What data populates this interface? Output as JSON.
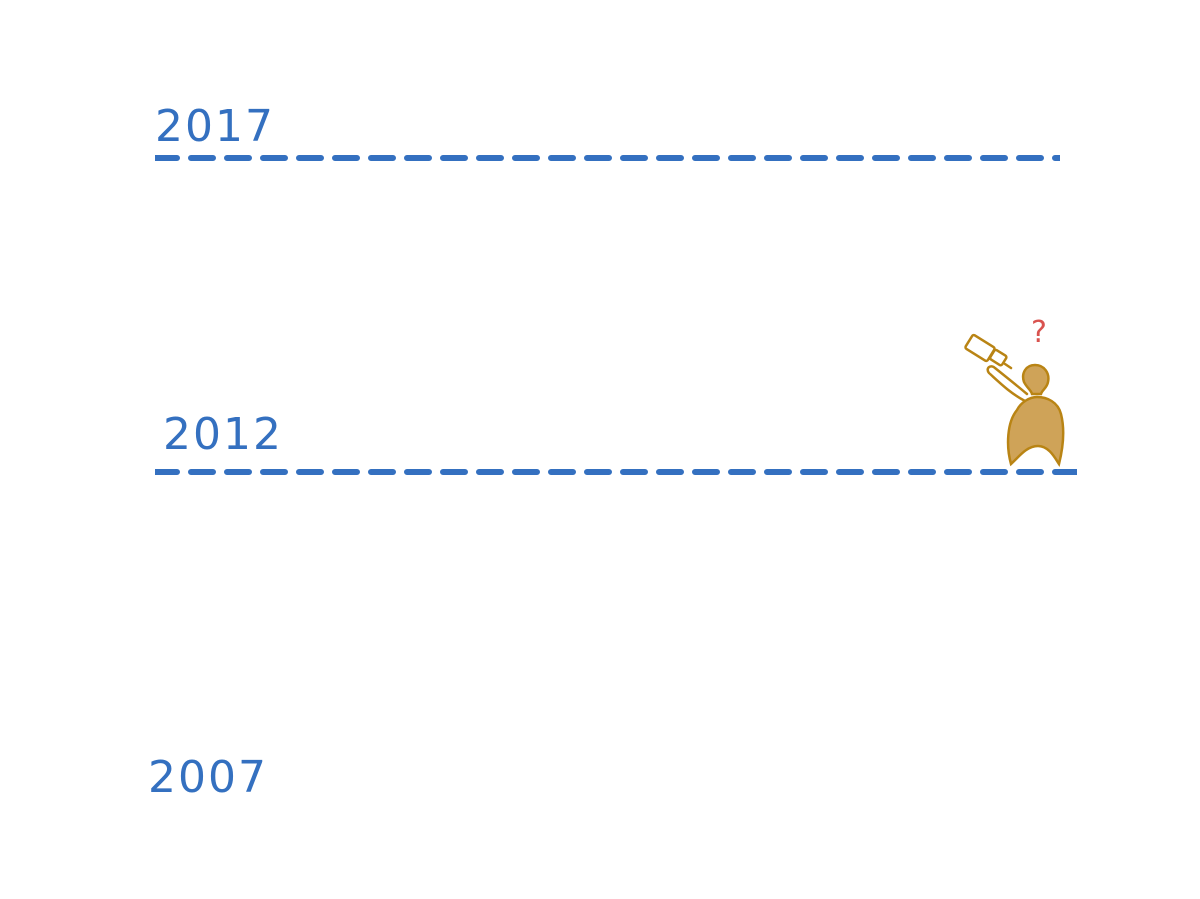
{
  "colors": {
    "timeline_blue": "#3470c0",
    "figure_fill": "#cfa358",
    "figure_stroke": "#b98414",
    "question_red": "#d9534f",
    "background": "#ffffff"
  },
  "timeline": {
    "markers": [
      {
        "year": "2017",
        "has_dashed_line": true
      },
      {
        "year": "2012",
        "has_dashed_line": true
      },
      {
        "year": "2007",
        "has_dashed_line": false
      }
    ]
  },
  "figure": {
    "icon": "person-with-telescope-icon",
    "thought": "?"
  }
}
